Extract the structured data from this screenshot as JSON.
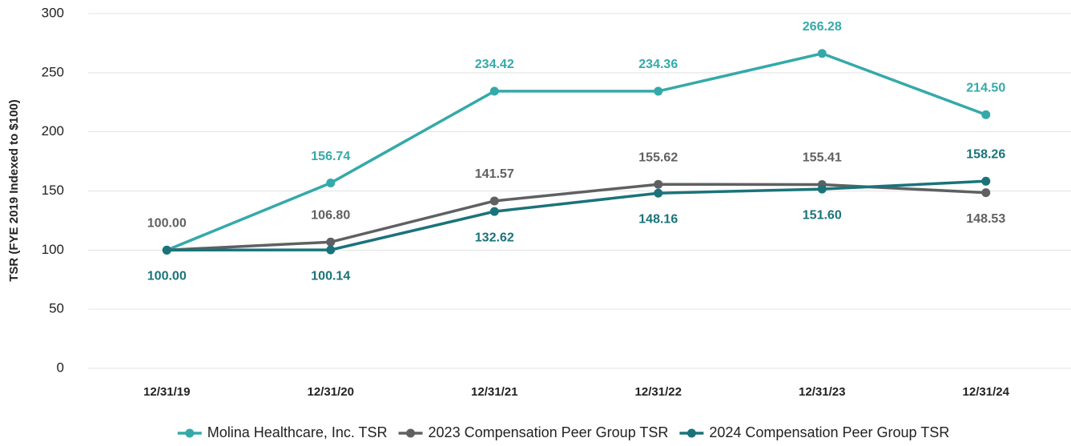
{
  "chart_data": {
    "type": "line",
    "y_label": "TSR (FYE 2019 Indexed to  $100)",
    "categories": [
      "12/31/19",
      "12/31/20",
      "12/31/21",
      "12/31/22",
      "12/31/23",
      "12/31/24"
    ],
    "series": [
      {
        "name": "Molina Healthcare, Inc. TSR",
        "color": "#35a9a9",
        "values": [
          100,
          156.74,
          234.42,
          234.36,
          266.28,
          214.5
        ],
        "value_labels": [
          null,
          "156.74",
          "234.42",
          "234.36",
          "266.28",
          "214.50"
        ]
      },
      {
        "name": "2023 Compensation Peer Group TSR",
        "color": "#5f6062",
        "values": [
          100,
          106.8,
          141.57,
          155.62,
          155.41,
          148.53
        ],
        "value_labels": [
          "100.00",
          "106.80",
          "141.57",
          "155.62",
          "155.41",
          "148.53"
        ]
      },
      {
        "name": "2024 Compensation Peer Group TSR",
        "color": "#1a737a",
        "values": [
          100,
          100.14,
          132.62,
          148.16,
          151.6,
          158.26
        ],
        "value_labels": [
          "100.00",
          "100.14",
          "132.62",
          "148.16",
          "151.60",
          "158.26"
        ]
      }
    ],
    "ylim": [
      0,
      300
    ],
    "yticks": [
      0,
      50,
      100,
      150,
      200,
      250,
      300
    ],
    "grid": true,
    "legend": "bottom"
  }
}
